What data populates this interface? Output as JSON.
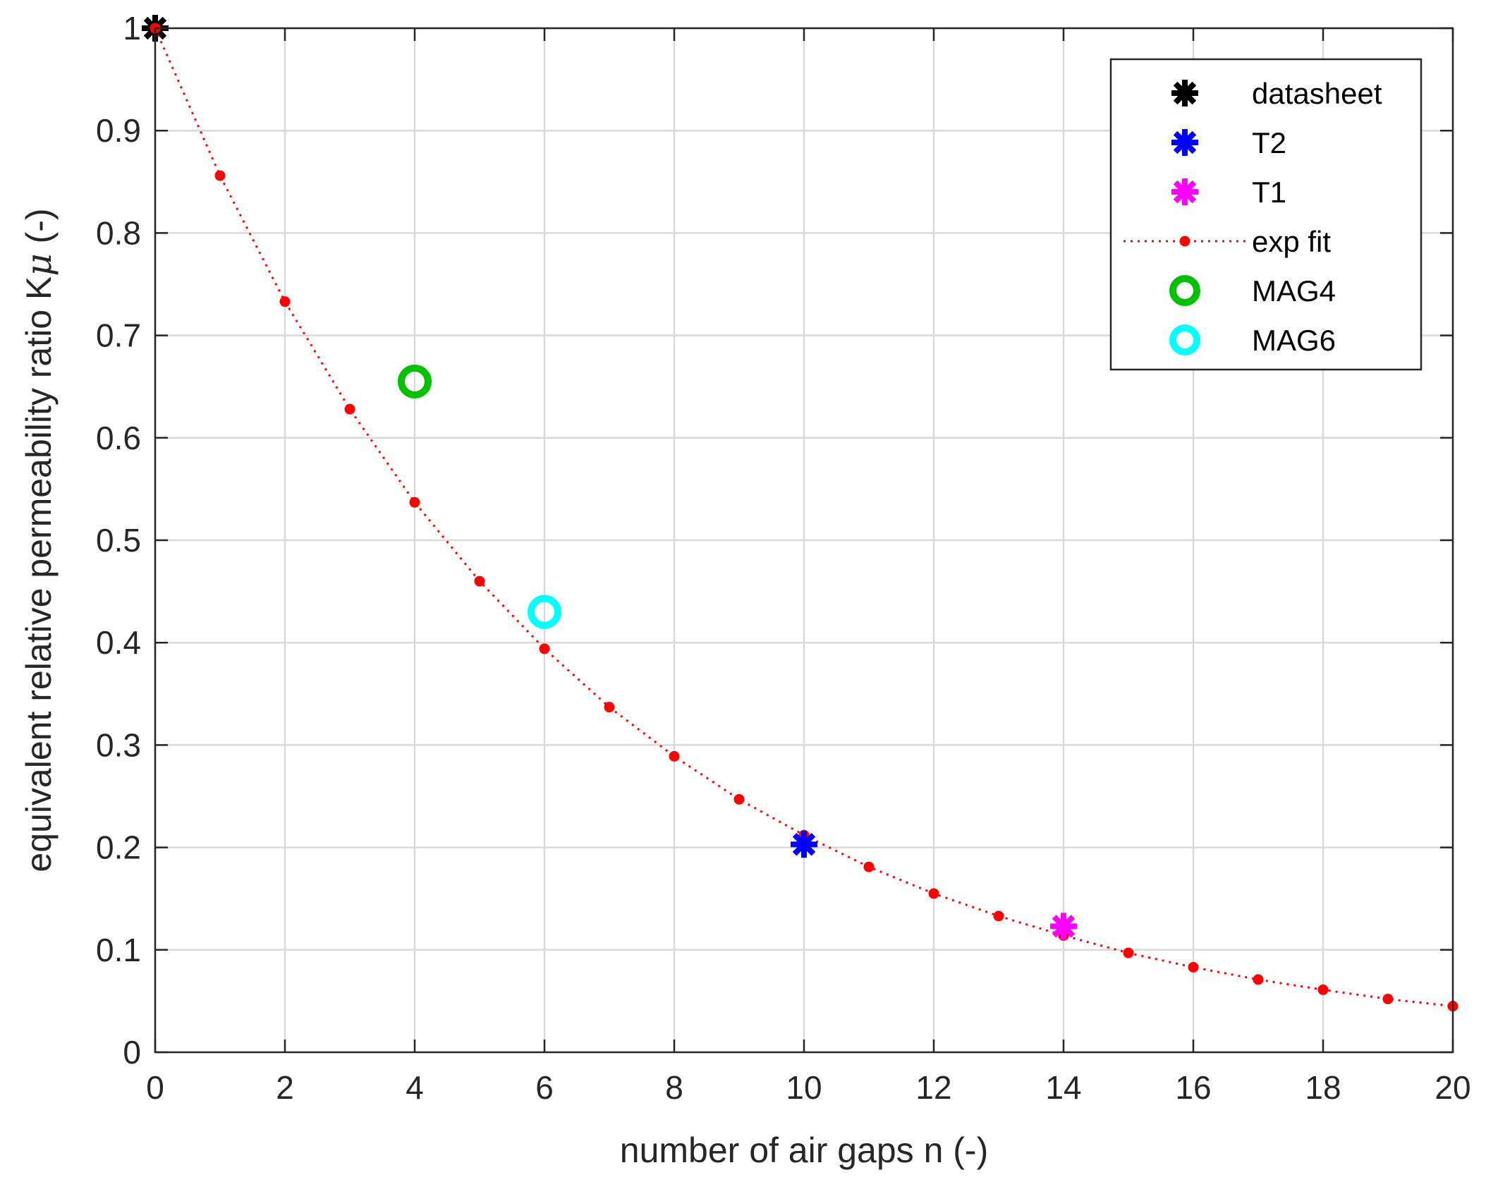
{
  "chart_data": {
    "type": "scatter",
    "title": "",
    "xlabel": "number of air gaps n (-)",
    "ylabel": "equivalent relative permeability ratio K",
    "ylabel_symbol": "μ",
    "ylabel_suffix": " (-)",
    "xlim": [
      0,
      20
    ],
    "ylim": [
      0,
      1
    ],
    "grid": true,
    "legend_position": "top-right",
    "x_ticks": [
      0,
      2,
      4,
      6,
      8,
      10,
      12,
      14,
      16,
      18,
      20
    ],
    "y_ticks": [
      0,
      0.1,
      0.2,
      0.3,
      0.4,
      0.5,
      0.6,
      0.7,
      0.8,
      0.9,
      1
    ],
    "x_tick_labels": [
      "0",
      "2",
      "4",
      "6",
      "8",
      "10",
      "12",
      "14",
      "16",
      "18",
      "20"
    ],
    "y_tick_labels": [
      "0",
      "0.1",
      "0.2",
      "0.3",
      "0.4",
      "0.5",
      "0.6",
      "0.7",
      "0.8",
      "0.9",
      "1"
    ],
    "series": [
      {
        "name": "datasheet",
        "marker": "asterisk",
        "color": "#000000",
        "x": [
          0
        ],
        "y": [
          1.0
        ]
      },
      {
        "name": "T2",
        "marker": "asterisk",
        "color": "#0000ff",
        "x": [
          10
        ],
        "y": [
          0.203
        ]
      },
      {
        "name": "T1",
        "marker": "asterisk",
        "color": "#ff00ff",
        "x": [
          14
        ],
        "y": [
          0.123
        ]
      },
      {
        "name": "exp fit",
        "marker": "dot",
        "line": "dotted",
        "color": "#ff0000",
        "x": [
          0,
          1,
          2,
          3,
          4,
          5,
          6,
          7,
          8,
          9,
          10,
          11,
          12,
          13,
          14,
          15,
          16,
          17,
          18,
          19,
          20
        ],
        "y": [
          1.0,
          0.856,
          0.733,
          0.628,
          0.537,
          0.46,
          0.394,
          0.337,
          0.289,
          0.247,
          0.212,
          0.181,
          0.155,
          0.133,
          0.114,
          0.097,
          0.083,
          0.071,
          0.061,
          0.052,
          0.045
        ]
      },
      {
        "name": "MAG4",
        "marker": "circle",
        "color": "#00c000",
        "x": [
          4
        ],
        "y": [
          0.655
        ]
      },
      {
        "name": "MAG6",
        "marker": "circle",
        "color": "#00ffff",
        "x": [
          6
        ],
        "y": [
          0.43
        ]
      }
    ]
  }
}
